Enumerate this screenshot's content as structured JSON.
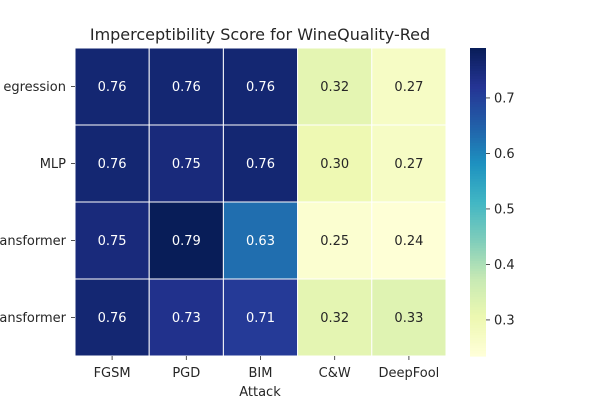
{
  "chart_data": {
    "type": "heatmap",
    "title": "Imperceptibility Score for WineQuality-Red",
    "xlabel": "Attack",
    "ylabel": "",
    "x_categories": [
      "FGSM",
      "PGD",
      "BIM",
      "C&W",
      "DeepFool"
    ],
    "y_categories": [
      "egression",
      "MLP",
      "ansformer",
      "ansformer"
    ],
    "values": [
      [
        0.76,
        0.76,
        0.76,
        0.32,
        0.27
      ],
      [
        0.76,
        0.75,
        0.76,
        0.3,
        0.27
      ],
      [
        0.75,
        0.79,
        0.63,
        0.25,
        0.24
      ],
      [
        0.76,
        0.73,
        0.71,
        0.32,
        0.33
      ]
    ],
    "value_labels": [
      [
        "0.76",
        "0.76",
        "0.76",
        "0.32",
        "0.27"
      ],
      [
        "0.76",
        "0.75",
        "0.76",
        "0.30",
        "0.27"
      ],
      [
        "0.75",
        "0.79",
        "0.63",
        "0.25",
        "0.24"
      ],
      [
        "0.76",
        "0.73",
        "0.71",
        "0.32",
        "0.33"
      ]
    ],
    "colormap": "YlGnBu",
    "color_range": [
      0.235,
      0.79
    ],
    "colorbar_ticks": [
      0.3,
      0.4,
      0.5,
      0.6,
      0.7
    ],
    "colorbar_tick_labels": [
      "0.3",
      "0.4",
      "0.5",
      "0.6",
      "0.7"
    ]
  }
}
